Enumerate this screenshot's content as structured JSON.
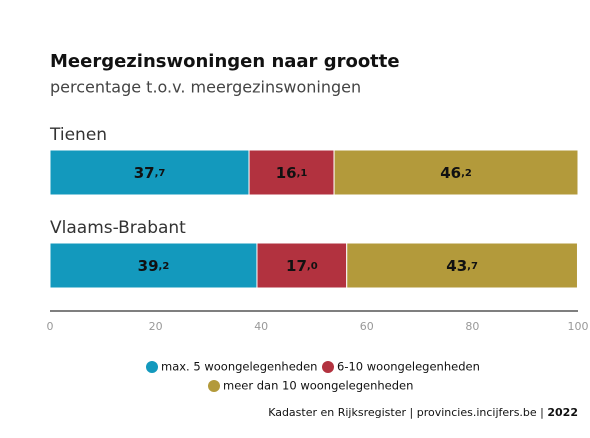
{
  "chart_data": {
    "type": "stacked-bar-horizontal",
    "title": "Meergezinswoningen naar grootte",
    "subtitle": "percentage t.o.v. meergezinswoningen",
    "categories": [
      "Tienen",
      "Vlaams-Brabant"
    ],
    "series": [
      {
        "name": "max. 5 woongelegenheden",
        "color": "#1399bd",
        "values": [
          37.7,
          39.2
        ],
        "value_labels": [
          "37,7",
          "39,2"
        ]
      },
      {
        "name": "6-10 woongelegenheden",
        "color": "#b2323f",
        "values": [
          16.1,
          17.0
        ],
        "value_labels": [
          "16,1",
          "17,0"
        ]
      },
      {
        "name": "meer dan 10 woongelegenheden",
        "color": "#b39a3b",
        "values": [
          46.2,
          43.7
        ],
        "value_labels": [
          "46,2",
          "43,7"
        ]
      }
    ],
    "xlim": [
      0,
      100
    ],
    "xticks": [
      0,
      20,
      40,
      60,
      80,
      100
    ],
    "source": "Kadaster en Rijksregister | provincies.incijfers.be |",
    "year": "2022"
  }
}
